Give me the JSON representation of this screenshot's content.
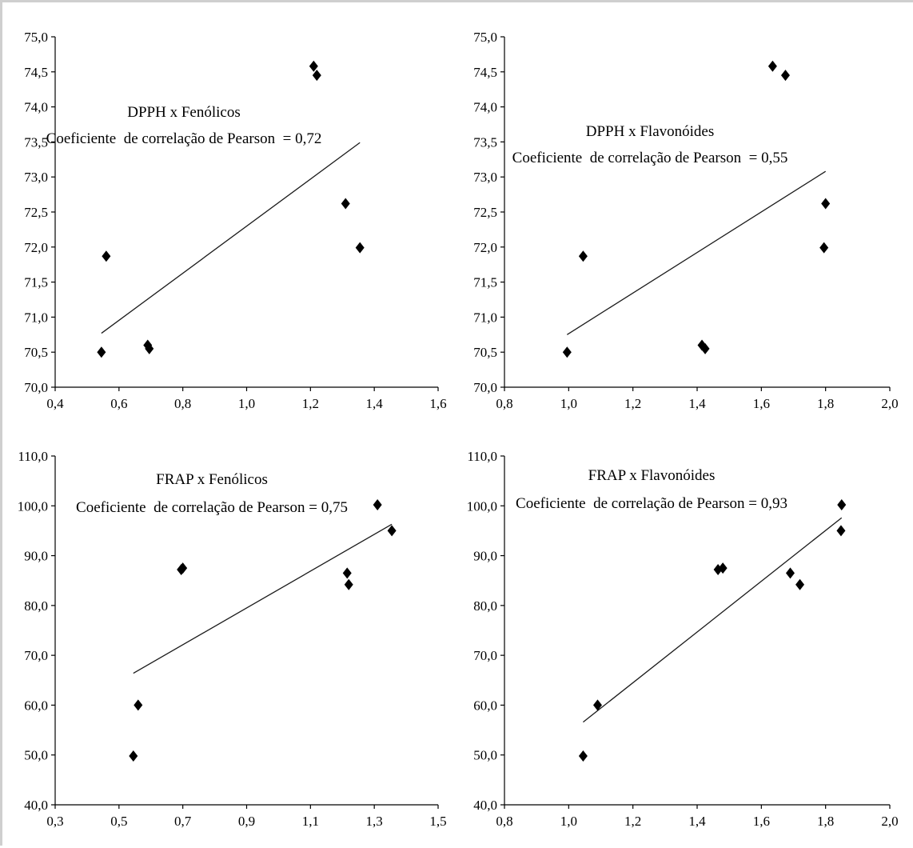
{
  "chart_data": [
    {
      "type": "scatter",
      "title": "DPPH x Fenólicos",
      "subtitle": "Coeficiente  de correlação de Pearson  = 0,72",
      "xlabel": "",
      "ylabel": "",
      "xlim": [
        0.4,
        1.6
      ],
      "ylim": [
        70.0,
        75.0
      ],
      "xticks": [
        "0,4",
        "0,6",
        "0,8",
        "1,0",
        "1,2",
        "1,4",
        "1,6"
      ],
      "yticks": [
        "70,0",
        "70,5",
        "71,0",
        "71,5",
        "72,0",
        "72,5",
        "73,0",
        "73,5",
        "74,0",
        "74,5",
        "75,0"
      ],
      "points": [
        {
          "x": 0.545,
          "y": 70.5
        },
        {
          "x": 0.56,
          "y": 71.87
        },
        {
          "x": 0.69,
          "y": 70.6
        },
        {
          "x": 0.695,
          "y": 70.55
        },
        {
          "x": 1.21,
          "y": 74.58
        },
        {
          "x": 1.22,
          "y": 74.45
        },
        {
          "x": 1.31,
          "y": 72.62
        },
        {
          "x": 1.355,
          "y": 71.99
        }
      ],
      "trendline": {
        "x": [
          0.545,
          1.355
        ],
        "y": [
          70.77,
          73.49
        ]
      },
      "pearson": 0.72
    },
    {
      "type": "scatter",
      "title": "DPPH x Flavonóides",
      "subtitle": "Coeficiente  de correlação de Pearson  = 0,55",
      "xlabel": "",
      "ylabel": "",
      "xlim": [
        0.8,
        2.0
      ],
      "ylim": [
        70.0,
        75.0
      ],
      "xticks": [
        "0,8",
        "1,0",
        "1,2",
        "1,4",
        "1,6",
        "1,8",
        "2,0"
      ],
      "yticks": [
        "70,0",
        "70,5",
        "71,0",
        "71,5",
        "72,0",
        "72,5",
        "73,0",
        "73,5",
        "74,0",
        "74,5",
        "75,0"
      ],
      "points": [
        {
          "x": 0.995,
          "y": 70.5
        },
        {
          "x": 1.045,
          "y": 71.87
        },
        {
          "x": 1.415,
          "y": 70.6
        },
        {
          "x": 1.425,
          "y": 70.55
        },
        {
          "x": 1.635,
          "y": 74.58
        },
        {
          "x": 1.675,
          "y": 74.45
        },
        {
          "x": 1.8,
          "y": 72.62
        },
        {
          "x": 1.795,
          "y": 71.99
        }
      ],
      "trendline": {
        "x": [
          0.995,
          1.8
        ],
        "y": [
          70.75,
          73.08
        ]
      },
      "pearson": 0.55
    },
    {
      "type": "scatter",
      "title": "FRAP x Fenólicos",
      "subtitle": "Coeficiente  de correlação de Pearson = 0,75",
      "xlabel": "",
      "ylabel": "",
      "xlim": [
        0.3,
        1.5
      ],
      "ylim": [
        40.0,
        110.0
      ],
      "xticks": [
        "0,3",
        "0,5",
        "0,7",
        "0,9",
        "1,1",
        "1,3",
        "1,5"
      ],
      "yticks": [
        "40,0",
        "50,0",
        "60,0",
        "70,0",
        "80,0",
        "90,0",
        "100,0",
        "110,0"
      ],
      "points": [
        {
          "x": 0.545,
          "y": 49.8
        },
        {
          "x": 0.56,
          "y": 60.0
        },
        {
          "x": 0.695,
          "y": 87.2
        },
        {
          "x": 0.7,
          "y": 87.5
        },
        {
          "x": 1.215,
          "y": 86.5
        },
        {
          "x": 1.22,
          "y": 84.2
        },
        {
          "x": 1.31,
          "y": 100.2
        },
        {
          "x": 1.355,
          "y": 95.0
        }
      ],
      "trendline": {
        "x": [
          0.545,
          1.355
        ],
        "y": [
          66.4,
          96.3
        ]
      },
      "pearson": 0.75
    },
    {
      "type": "scatter",
      "title": "FRAP x Flavonóides",
      "subtitle": "Coeficiente  de correlação de Pearson = 0,93",
      "xlabel": "",
      "ylabel": "",
      "xlim": [
        0.8,
        2.0
      ],
      "ylim": [
        40.0,
        110.0
      ],
      "xticks": [
        "0,8",
        "1,0",
        "1,2",
        "1,4",
        "1,6",
        "1,8",
        "2,0"
      ],
      "yticks": [
        "40,0",
        "50,0",
        "60,0",
        "70,0",
        "80,0",
        "90,0",
        "100,0",
        "110,0"
      ],
      "points": [
        {
          "x": 1.045,
          "y": 49.8
        },
        {
          "x": 1.09,
          "y": 60.0
        },
        {
          "x": 1.465,
          "y": 87.2
        },
        {
          "x": 1.48,
          "y": 87.5
        },
        {
          "x": 1.69,
          "y": 86.5
        },
        {
          "x": 1.72,
          "y": 84.2
        },
        {
          "x": 1.85,
          "y": 100.2
        },
        {
          "x": 1.848,
          "y": 95.0
        }
      ],
      "trendline": {
        "x": [
          1.045,
          1.85
        ],
        "y": [
          56.6,
          97.6
        ]
      },
      "pearson": 0.93
    }
  ]
}
